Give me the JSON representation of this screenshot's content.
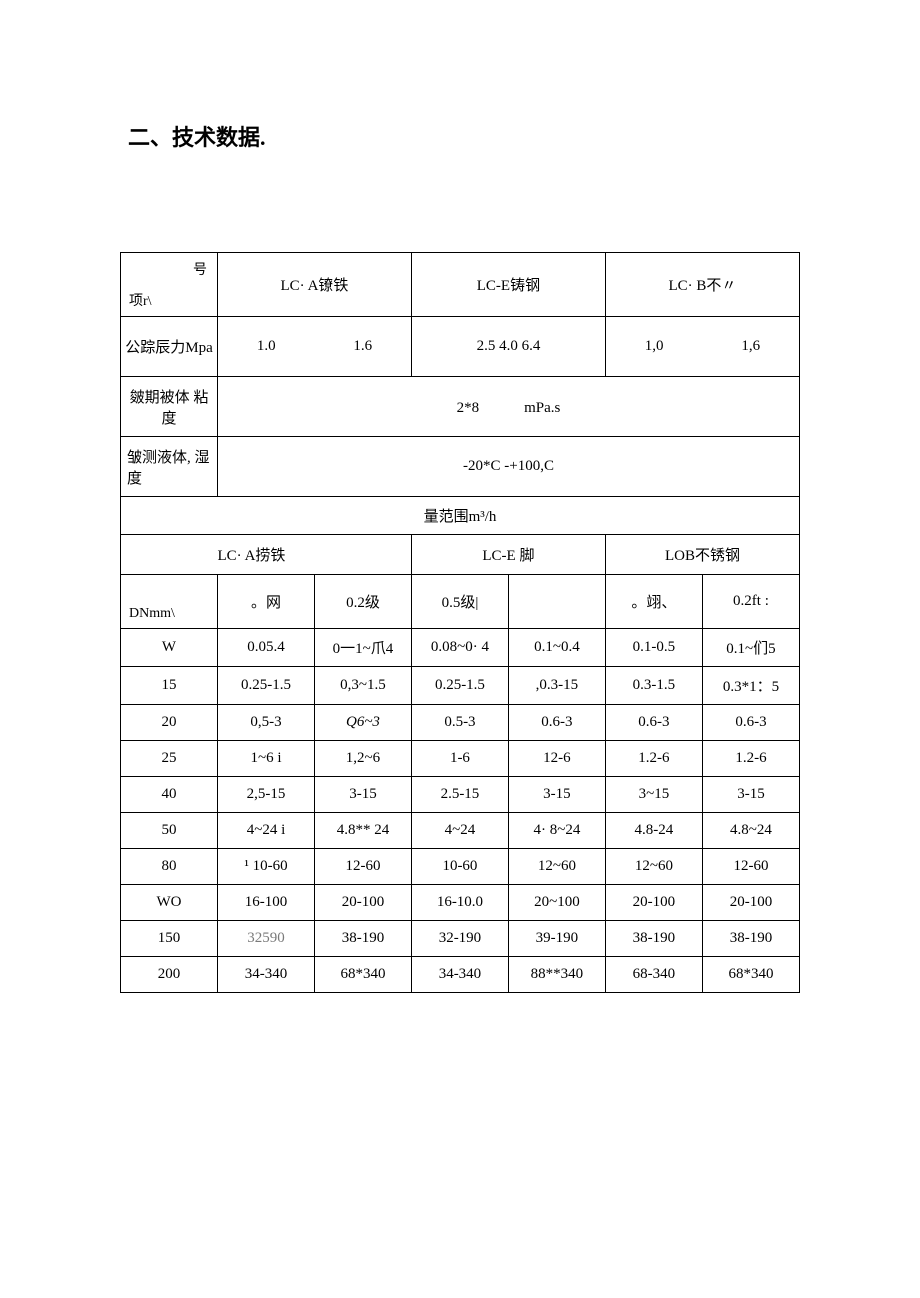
{
  "section_title": "二、技术数据.",
  "headers": {
    "diag_top": "号",
    "diag_bottom": "项r\\",
    "model_a": "LC· A镣铁",
    "model_e": "LC-E铸钢",
    "model_b": "LC· B不〃"
  },
  "pressure_row": {
    "label": "公踪辰力Mpa",
    "a1": "1.0",
    "a2": "1.6",
    "e": "2.5 4.0 6.4",
    "b1": "1,0",
    "b2": "1,6"
  },
  "viscosity_row": {
    "label": "皴期被体 粘度",
    "value": "2*8　　　mPa.s"
  },
  "humidity_row": {
    "label": "皱测液体, 湿度",
    "value": "-20*C -+100,C"
  },
  "range_header": "量范围m³/h",
  "sub_headers": {
    "a": "LC· A捞铁",
    "e": "LC-E 脚",
    "b": "LOB不锈钢"
  },
  "grade_headers": {
    "diag_bottom": "DNmm\\",
    "a1": "。网",
    "a2": "0.2级",
    "e1": "0.5级|",
    "e2": "",
    "b1": "。翊、",
    "b2": "0.2ft :"
  },
  "data_rows": [
    {
      "dn": "W",
      "a1": "0.05.4",
      "a2": "0一1~爪4",
      "e1": "0.08~0· 4",
      "e2": "0.1~0.4",
      "b1": "0.1-0.5",
      "b2": "0.1~们5"
    },
    {
      "dn": "15",
      "a1": "0.25-1.5",
      "a2": "0,3~1.5",
      "e1": "0.25-1.5",
      "e2": ",0.3-15",
      "b1": "0.3-1.5",
      "b2": "0.3*1：5"
    },
    {
      "dn": "20",
      "a1": "0,5-3",
      "a2": "Q6~3",
      "e1": "0.5-3",
      "e2": "0.6-3",
      "b1": "0.6-3",
      "b2": "0.6-3",
      "a2_italic": true
    },
    {
      "dn": "25",
      "a1": "1~6 i",
      "a2": "1,2~6",
      "e1": "1-6",
      "e2": "12-6",
      "b1": "1.2-6",
      "b2": "1.2-6"
    },
    {
      "dn": "40",
      "a1": "2,5-15",
      "a2": "3-15",
      "e1": "2.5-15",
      "e2": "3-15",
      "b1": "3~15",
      "b2": "3-15"
    },
    {
      "dn": "50",
      "a1": "4~24 i",
      "a2": "4.8** 24",
      "e1": "4~24",
      "e2": "4· 8~24",
      "b1": "4.8-24",
      "b2": "4.8~24"
    },
    {
      "dn": "80",
      "a1": "¹ 10-60",
      "a2": "12-60",
      "e1": "10-60",
      "e2": "12~60",
      "b1": "12~60",
      "b2": "12-60"
    },
    {
      "dn": "WO",
      "a1": "16-100",
      "a2": "20-100",
      "e1": "16-10.0",
      "e2": "20~100",
      "b1": "20-100",
      "b2": "20-100"
    },
    {
      "dn": "150",
      "a1": "32590",
      "a2": "38-190",
      "e1": "32-190",
      "e2": "39-190",
      "b1": "38-190",
      "b2": "38-190",
      "a1_gray": true
    },
    {
      "dn": "200",
      "a1": "34-340",
      "a2": "68*340",
      "e1": "34-340",
      "e2": "88**340",
      "b1": "68-340",
      "b2": "68*340"
    }
  ],
  "table_style": {
    "border_color": "#000000",
    "background": "#ffffff",
    "font_size_cell": 15,
    "font_size_title": 22,
    "col_widths_pct": [
      14.3,
      14.3,
      14.3,
      14.3,
      14.3,
      14.3,
      14.3
    ]
  }
}
